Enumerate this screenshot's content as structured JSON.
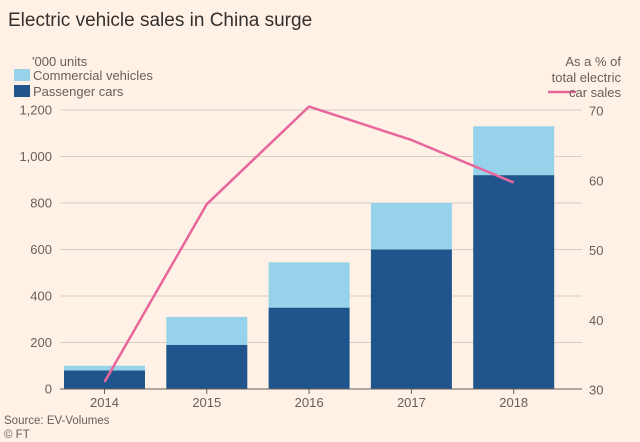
{
  "colors": {
    "background": "#fff1e5",
    "commercial": "#96d3ea",
    "passenger": "#1f558c",
    "share_line": "#e8669c"
  },
  "chart_data": {
    "type": "bar",
    "title": "Electric vehicle sales in China surge",
    "left_axis_label": "'000 units",
    "right_axis_label": [
      "As a % of",
      "total electric"
    ],
    "categories": [
      "2014",
      "2015",
      "2016",
      "2017",
      "2018"
    ],
    "series": [
      {
        "name": "Passenger cars",
        "values": [
          80,
          190,
          350,
          600,
          920
        ],
        "color": "#1f558c"
      },
      {
        "name": "Commercial vehicles",
        "values": [
          20,
          120,
          195,
          200,
          210
        ],
        "color": "#96d3ea"
      }
    ],
    "stacked": true,
    "line_series": {
      "name": "car sales",
      "values": [
        31,
        56.5,
        70.5,
        65.7,
        59.6
      ],
      "axis": "right",
      "color": "#e8669c"
    },
    "left_ylim": [
      0,
      1200
    ],
    "left_ticks": [
      "0",
      "200",
      "400",
      "600",
      "800",
      "1,000",
      "1,200"
    ],
    "right_ylim": [
      30,
      70
    ],
    "right_ticks": [
      "30",
      "40",
      "50",
      "60",
      "70"
    ],
    "grid": true,
    "legend_position": "top-left",
    "source": "Source: EV-Volumes",
    "credit": "© FT"
  }
}
